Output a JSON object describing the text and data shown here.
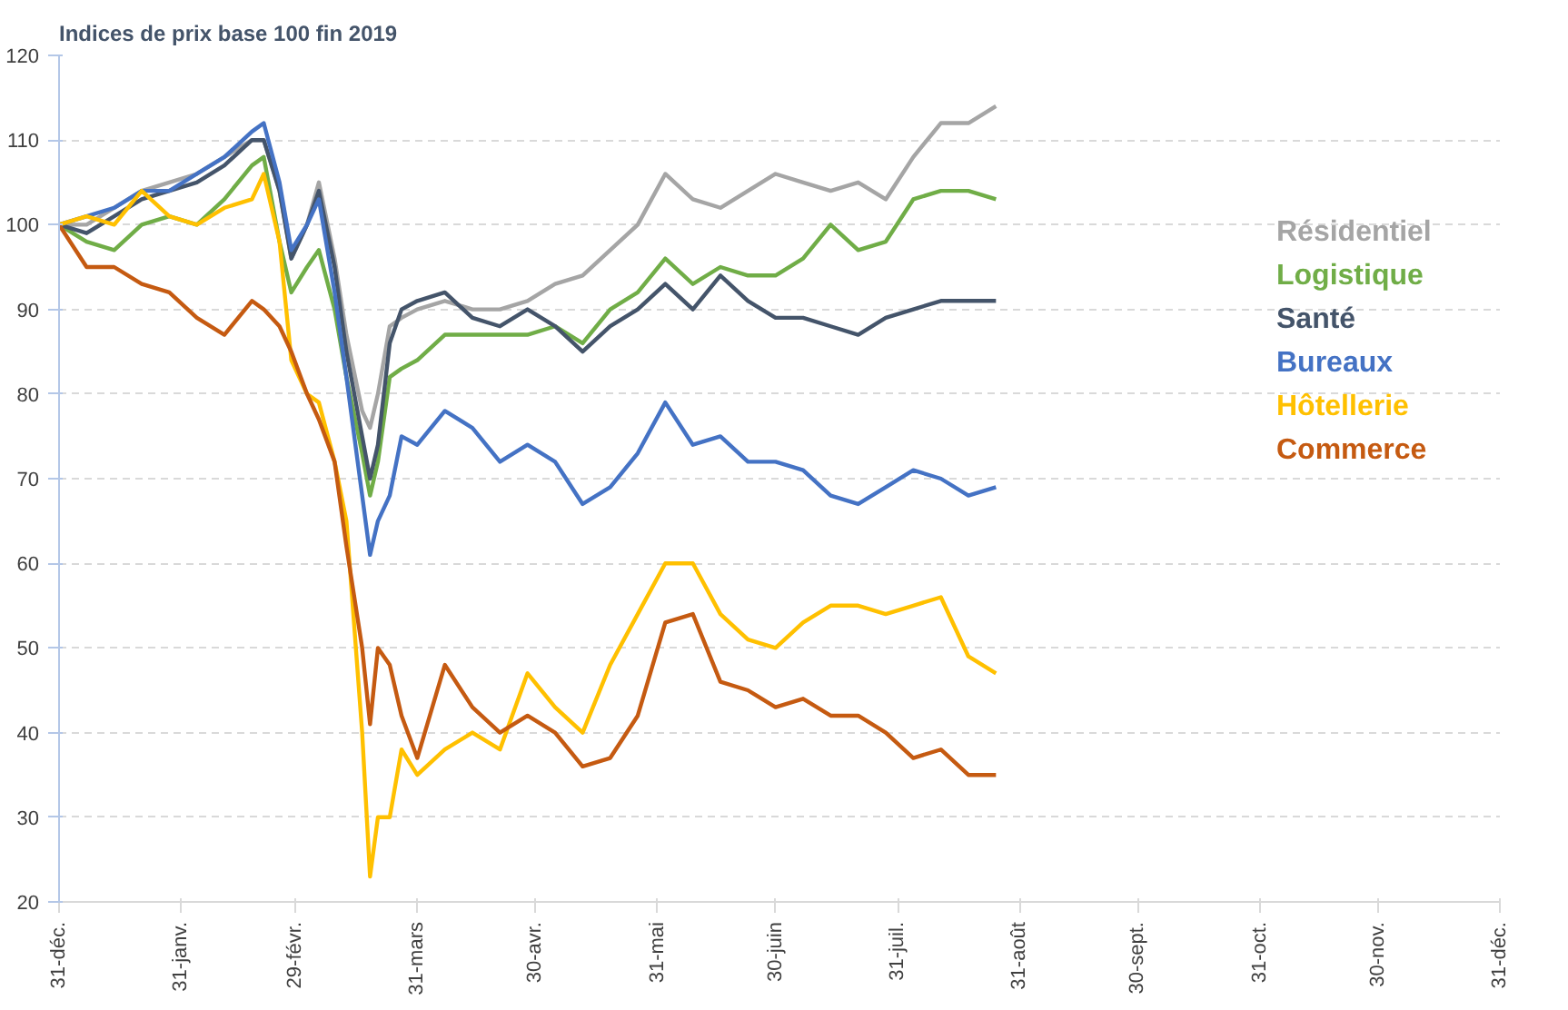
{
  "chart_data": {
    "type": "line",
    "title": "Indices de prix base 100 fin 2019",
    "x": [
      "2019-12-31",
      "2020-01-07",
      "2020-01-14",
      "2020-01-21",
      "2020-01-28",
      "2020-02-04",
      "2020-02-11",
      "2020-02-18",
      "2020-02-21",
      "2020-02-25",
      "2020-02-28",
      "2020-03-03",
      "2020-03-06",
      "2020-03-10",
      "2020-03-13",
      "2020-03-17",
      "2020-03-19",
      "2020-03-21",
      "2020-03-24",
      "2020-03-27",
      "2020-03-31",
      "2020-04-07",
      "2020-04-14",
      "2020-04-21",
      "2020-04-28",
      "2020-05-05",
      "2020-05-12",
      "2020-05-19",
      "2020-05-26",
      "2020-06-02",
      "2020-06-09",
      "2020-06-16",
      "2020-06-23",
      "2020-06-30",
      "2020-07-07",
      "2020-07-14",
      "2020-07-21",
      "2020-07-28",
      "2020-08-04",
      "2020-08-11",
      "2020-08-18",
      "2020-08-25"
    ],
    "series": [
      {
        "name": "Résidentiel",
        "color": "#a5a5a5",
        "values": [
          100,
          100,
          102,
          104,
          105,
          106,
          108,
          110,
          110,
          104,
          96,
          100,
          105,
          96,
          87,
          78,
          76,
          80,
          88,
          89,
          90,
          91,
          90,
          90,
          91,
          93,
          94,
          97,
          100,
          106,
          103,
          102,
          104,
          106,
          105,
          104,
          105,
          103,
          108,
          112,
          112,
          114
        ]
      },
      {
        "name": "Logistique",
        "color": "#70ad47",
        "values": [
          100,
          98,
          97,
          100,
          101,
          100,
          103,
          107,
          108,
          98,
          92,
          95,
          97,
          90,
          82,
          73,
          68,
          72,
          82,
          83,
          84,
          87,
          87,
          87,
          87,
          88,
          86,
          90,
          92,
          96,
          93,
          95,
          94,
          94,
          96,
          100,
          97,
          98,
          103,
          104,
          104,
          103
        ]
      },
      {
        "name": "Santé",
        "color": "#44546a",
        "values": [
          100,
          99,
          101,
          103,
          104,
          105,
          107,
          110,
          110,
          104,
          96,
          100,
          104,
          95,
          85,
          75,
          70,
          74,
          86,
          90,
          91,
          92,
          89,
          88,
          90,
          88,
          85,
          88,
          90,
          93,
          90,
          94,
          91,
          89,
          89,
          88,
          87,
          89,
          90,
          91,
          91,
          91
        ]
      },
      {
        "name": "Bureaux",
        "color": "#4472c4",
        "values": [
          100,
          101,
          102,
          104,
          104,
          106,
          108,
          111,
          112,
          105,
          97,
          100,
          103,
          92,
          82,
          68,
          61,
          65,
          68,
          75,
          74,
          78,
          76,
          72,
          74,
          72,
          67,
          69,
          73,
          79,
          74,
          75,
          72,
          72,
          71,
          68,
          67,
          69,
          71,
          70,
          68,
          69
        ]
      },
      {
        "name": "Hôtellerie",
        "color": "#ffc000",
        "values": [
          100,
          101,
          100,
          104,
          101,
          100,
          102,
          103,
          106,
          98,
          84,
          80,
          79,
          72,
          65,
          40,
          23,
          30,
          30,
          38,
          35,
          38,
          40,
          38,
          47,
          43,
          40,
          48,
          54,
          60,
          60,
          54,
          51,
          50,
          53,
          55,
          55,
          54,
          55,
          56,
          49,
          47
        ]
      },
      {
        "name": "Commerce",
        "color": "#c55a11",
        "values": [
          100,
          95,
          95,
          93,
          92,
          89,
          87,
          91,
          90,
          88,
          85,
          80,
          77,
          72,
          62,
          50,
          41,
          50,
          48,
          42,
          37,
          48,
          43,
          40,
          42,
          40,
          36,
          37,
          42,
          53,
          54,
          46,
          45,
          43,
          44,
          42,
          42,
          40,
          37,
          38,
          35,
          35
        ]
      }
    ],
    "xlim": [
      "2019-12-31",
      "2020-12-31"
    ],
    "xticks": [
      {
        "value": "2019-12-31",
        "label": "31-déc."
      },
      {
        "value": "2020-01-31",
        "label": "31-janv."
      },
      {
        "value": "2020-02-29",
        "label": "29-févr."
      },
      {
        "value": "2020-03-31",
        "label": "31-mars"
      },
      {
        "value": "2020-04-30",
        "label": "30-avr."
      },
      {
        "value": "2020-05-31",
        "label": "31-mai"
      },
      {
        "value": "2020-06-30",
        "label": "30-juin"
      },
      {
        "value": "2020-07-31",
        "label": "31-juil."
      },
      {
        "value": "2020-08-31",
        "label": "31-août"
      },
      {
        "value": "2020-09-30",
        "label": "30-sept."
      },
      {
        "value": "2020-10-31",
        "label": "31-oct."
      },
      {
        "value": "2020-11-30",
        "label": "30-nov."
      },
      {
        "value": "2020-12-31",
        "label": "31-déc."
      }
    ],
    "ylim": [
      20,
      120
    ],
    "yticks": [
      20,
      30,
      40,
      50,
      60,
      70,
      80,
      90,
      100,
      110,
      120
    ],
    "grid": "y",
    "legend": "right",
    "marker": "none",
    "line_style": "solid"
  }
}
